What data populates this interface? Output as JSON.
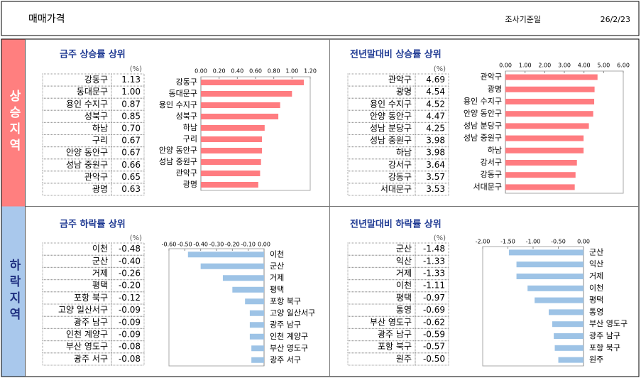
{
  "header": {
    "title": "매매가격",
    "date_label": "조사기준일",
    "date": "26/2/23"
  },
  "sections": [
    {
      "label": "상승지역"
    },
    {
      "label": "하락지역"
    }
  ],
  "chart_data": [
    {
      "type": "bar",
      "orientation": "horizontal",
      "title": "금주 상승률 상위",
      "unit": "(%)",
      "color": "#ff7c80",
      "categories": [
        "강동구",
        "동대문구",
        "용인 수지구",
        "성북구",
        "하남",
        "구리",
        "안양 동안구",
        "성남 중원구",
        "관악구",
        "광명"
      ],
      "values": [
        1.13,
        1.0,
        0.87,
        0.85,
        0.7,
        0.67,
        0.67,
        0.66,
        0.65,
        0.63
      ],
      "value_labels": [
        "1.13",
        "1.00",
        "0.87",
        "0.85",
        "0.70",
        "0.67",
        "0.67",
        "0.66",
        "0.65",
        "0.63"
      ],
      "xlim": [
        0,
        1.2
      ],
      "xticks": [
        {
          "value": 0,
          "label": "0.00"
        },
        {
          "value": 0.2,
          "label": "0.20"
        },
        {
          "value": 0.4,
          "label": "0.40"
        },
        {
          "value": 0.6,
          "label": "0.60"
        },
        {
          "value": 0.8,
          "label": "0.80"
        },
        {
          "value": 1,
          "label": "1.00"
        },
        {
          "value": 1.2,
          "label": "1.20"
        }
      ]
    },
    {
      "type": "bar",
      "orientation": "horizontal",
      "title": "전년말대비 상승률 상위",
      "unit": "(%)",
      "color": "#ff7c80",
      "categories": [
        "관악구",
        "광명",
        "용인 수지구",
        "안양 동안구",
        "성남 분당구",
        "성남 중원구",
        "하남",
        "강서구",
        "강동구",
        "서대문구"
      ],
      "values": [
        4.69,
        4.54,
        4.52,
        4.47,
        4.25,
        3.98,
        3.98,
        3.64,
        3.57,
        3.53
      ],
      "value_labels": [
        "4.69",
        "4.54",
        "4.52",
        "4.47",
        "4.25",
        "3.98",
        "3.98",
        "3.64",
        "3.57",
        "3.53"
      ],
      "xlim": [
        0,
        6
      ],
      "xticks": [
        {
          "value": 0,
          "label": "0.00"
        },
        {
          "value": 1,
          "label": "1.00"
        },
        {
          "value": 2,
          "label": "2.00"
        },
        {
          "value": 3,
          "label": "3.00"
        },
        {
          "value": 4,
          "label": "4.00"
        },
        {
          "value": 5,
          "label": "5.00"
        },
        {
          "value": 6,
          "label": "6.00"
        }
      ]
    },
    {
      "type": "bar",
      "orientation": "horizontal",
      "title": "금주 하락률 상위",
      "unit": "(%)",
      "color": "#9dc3e6",
      "categories": [
        "이천",
        "군산",
        "거제",
        "평택",
        "포항 북구",
        "고양 일산서구",
        "광주 남구",
        "인천 계양구",
        "부산 영도구",
        "광주 서구"
      ],
      "values": [
        -0.48,
        -0.4,
        -0.26,
        -0.2,
        -0.12,
        -0.09,
        -0.09,
        -0.09,
        -0.08,
        -0.08
      ],
      "value_labels": [
        "-0.48",
        "-0.40",
        "-0.26",
        "-0.20",
        "-0.12",
        "-0.09",
        "-0.09",
        "-0.09",
        "-0.08",
        "-0.08"
      ],
      "xlim": [
        -0.6,
        0
      ],
      "xticks": [
        {
          "value": -0.6,
          "label": "-0.60"
        },
        {
          "value": -0.5,
          "label": "-0.50"
        },
        {
          "value": -0.4,
          "label": "-0.40"
        },
        {
          "value": -0.3,
          "label": "-0.30"
        },
        {
          "value": -0.2,
          "label": "-0.20"
        },
        {
          "value": -0.1,
          "label": "-0.10"
        },
        {
          "value": 0,
          "label": "0.00"
        }
      ]
    },
    {
      "type": "bar",
      "orientation": "horizontal",
      "title": "전년말대비 하락률 상위",
      "unit": "(%)",
      "color": "#9dc3e6",
      "categories": [
        "군산",
        "익산",
        "거제",
        "이천",
        "평택",
        "통영",
        "부산 영도구",
        "광주 남구",
        "포항 북구",
        "원주"
      ],
      "values": [
        -1.48,
        -1.33,
        -1.33,
        -1.11,
        -0.97,
        -0.69,
        -0.62,
        -0.59,
        -0.57,
        -0.5
      ],
      "value_labels": [
        "-1.48",
        "-1.33",
        "-1.33",
        "-1.11",
        "-0.97",
        "-0.69",
        "-0.62",
        "-0.59",
        "-0.57",
        "-0.50"
      ],
      "xlim": [
        -2,
        0
      ],
      "xticks": [
        {
          "value": -2,
          "label": "-2.00"
        },
        {
          "value": -1.5,
          "label": "-1.50"
        },
        {
          "value": -1,
          "label": "-1.00"
        },
        {
          "value": -0.5,
          "label": "-0.50"
        },
        {
          "value": 0,
          "label": "0.00"
        }
      ]
    }
  ]
}
